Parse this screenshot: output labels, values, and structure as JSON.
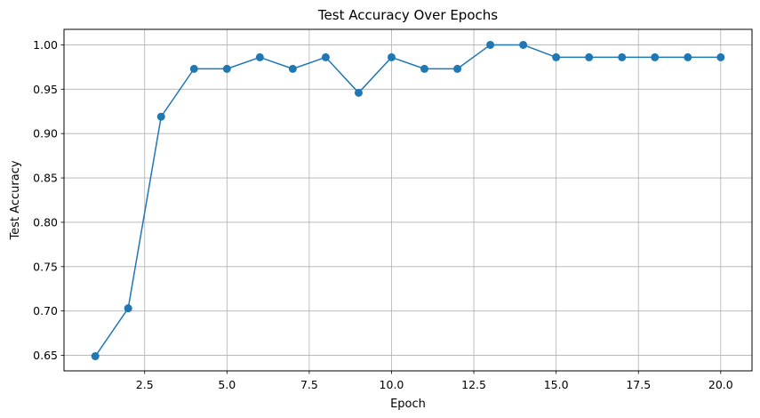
{
  "chart_data": {
    "type": "line",
    "title": "Test Accuracy Over Epochs",
    "xlabel": "Epoch",
    "ylabel": "Test Accuracy",
    "xlim": [
      0.05,
      20.95
    ],
    "ylim": [
      0.6325,
      1.0175
    ],
    "xticks": [
      2.5,
      5.0,
      7.5,
      10.0,
      12.5,
      15.0,
      17.5,
      20.0
    ],
    "xtick_labels": [
      "2.5",
      "5.0",
      "7.5",
      "10.0",
      "12.5",
      "15.0",
      "17.5",
      "20.0"
    ],
    "yticks": [
      0.65,
      0.7,
      0.75,
      0.8,
      0.85,
      0.9,
      0.95,
      1.0
    ],
    "ytick_labels": [
      "0.65",
      "0.70",
      "0.75",
      "0.80",
      "0.85",
      "0.90",
      "0.95",
      "1.00"
    ],
    "grid": true,
    "marker": "circle",
    "color": "#1f77b4",
    "series": [
      {
        "x": [
          1,
          2,
          3,
          4,
          5,
          6,
          7,
          8,
          9,
          10,
          11,
          12,
          13,
          14,
          15,
          16,
          17,
          18,
          19,
          20
        ],
        "values": [
          0.649,
          0.703,
          0.919,
          0.973,
          0.973,
          0.986,
          0.973,
          0.986,
          0.946,
          0.986,
          0.973,
          0.973,
          1.0,
          1.0,
          0.986,
          0.986,
          0.986,
          0.986,
          0.986,
          0.986
        ]
      }
    ]
  }
}
